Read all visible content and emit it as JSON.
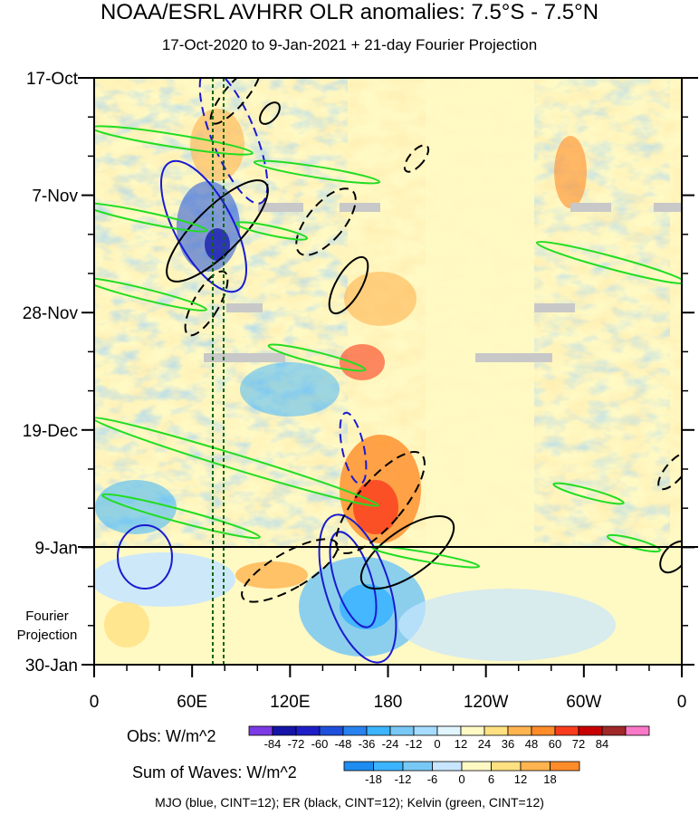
{
  "title": "NOAA/ESRL AVHRR OLR anomalies: 7.5°S - 7.5°N",
  "subtitle": "17-Oct-2020 to 9-Jan-2021 + 21-day Fourier Projection",
  "y_tick_labels": [
    "17-Oct",
    "7-Nov",
    "28-Nov",
    "19-Dec",
    "9-Jan",
    "30-Jan"
  ],
  "x_tick_labels": [
    "0",
    "60E",
    "120E",
    "180",
    "120W",
    "60W",
    "0"
  ],
  "fourier_label_line1": "Fourier",
  "fourier_label_line2": "Projection",
  "obs_colorbar": {
    "label": "Obs: W/m^2",
    "tick_labels": [
      "-84",
      "-72",
      "-60",
      "-48",
      "-36",
      "-24",
      "-12",
      "0",
      "12",
      "24",
      "36",
      "48",
      "60",
      "72",
      "84"
    ],
    "colors": [
      "#7c3ae6",
      "#1414a8",
      "#1e1ec8",
      "#1e50dc",
      "#2882f0",
      "#3cb4ff",
      "#78c8f5",
      "#a6dcff",
      "#e1f5ff",
      "#fff9c4",
      "#ffe182",
      "#ffb450",
      "#ff8c28",
      "#fa3c1e",
      "#c80000",
      "#a02828",
      "#fa78c8"
    ]
  },
  "waves_colorbar": {
    "label": "Sum of Waves: W/m^2",
    "tick_labels": [
      "-18",
      "-12",
      "-6",
      "0",
      "6",
      "12",
      "18"
    ],
    "colors": [
      "#1e8cf0",
      "#3cb4ff",
      "#78c8f5",
      "#c8e6ff",
      "#fff9c4",
      "#ffe182",
      "#ffb450",
      "#ff8c28"
    ]
  },
  "footnote": "MJO (blue, CINT=12); ER (black, CINT=12); Kelvin (green, CINT=12)",
  "chart_data": {
    "type": "heatmap",
    "title": "NOAA/ESRL AVHRR OLR anomalies: 7.5°S - 7.5°N",
    "subtitle": "17-Oct-2020 to 9-Jan-2021 + 21-day Fourier Projection",
    "x_axis": {
      "ticks": [
        "0",
        "60E",
        "120E",
        "180",
        "120W",
        "60W",
        "0"
      ],
      "range_deg_east": [
        0,
        360
      ]
    },
    "y_axis": {
      "ticks": [
        "17-Oct",
        "7-Nov",
        "28-Nov",
        "19-Dec",
        "9-Jan",
        "30-Jan"
      ],
      "range": [
        "2020-10-17",
        "2021-01-30"
      ],
      "inverted": true
    },
    "observation_end": "9-Jan",
    "reference_longitudes_deg_east": [
      75,
      80
    ],
    "colorbar_obs_levels": [
      -84,
      -72,
      -60,
      -48,
      -36,
      -24,
      -12,
      0,
      12,
      24,
      36,
      48,
      60,
      72,
      84
    ],
    "colorbar_waves_levels": [
      -18,
      -12,
      -6,
      0,
      6,
      12,
      18
    ],
    "wave_contours": [
      {
        "name": "MJO",
        "color": "blue",
        "cint": 12
      },
      {
        "name": "ER",
        "color": "black",
        "cint": 12
      },
      {
        "name": "Kelvin",
        "color": "green",
        "cint": 12
      }
    ]
  }
}
